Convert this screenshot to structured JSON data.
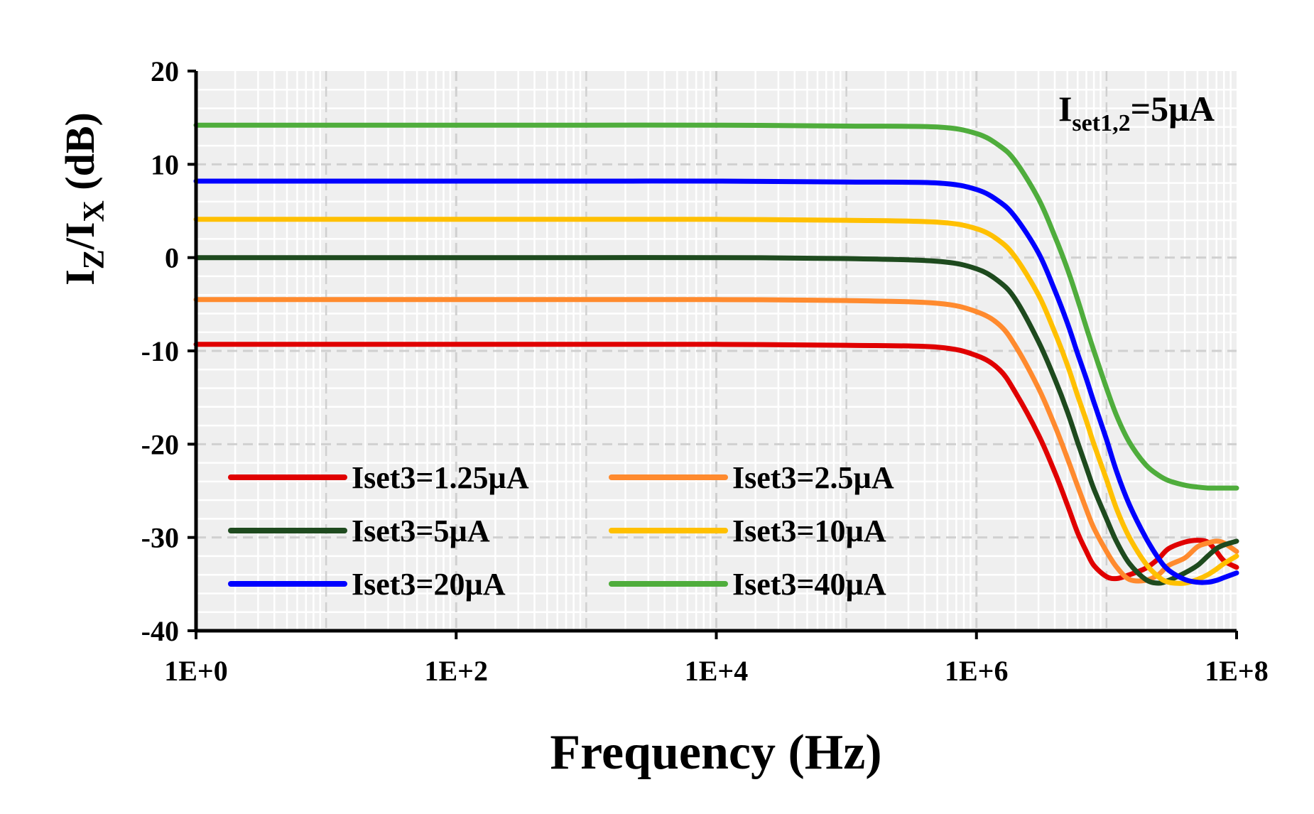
{
  "chart_data": {
    "type": "line",
    "xlabel": "Frequency (Hz)",
    "ylabel": {
      "base": "I",
      "sub1": "Z",
      "sep": "/I",
      "sub2": "X",
      "unit": " (dB)"
    },
    "x_scale": "log",
    "xlim": [
      1,
      100000000
    ],
    "ylim": [
      -40,
      20
    ],
    "x_ticks": [
      {
        "value": 1,
        "label": "1E+0"
      },
      {
        "value": 100,
        "label": "1E+2"
      },
      {
        "value": 10000,
        "label": "1E+4"
      },
      {
        "value": 1000000,
        "label": "1E+6"
      },
      {
        "value": 100000000,
        "label": "1E+8"
      }
    ],
    "y_ticks": [
      {
        "value": 20,
        "label": "20"
      },
      {
        "value": 10,
        "label": "10"
      },
      {
        "value": 0,
        "label": "0"
      },
      {
        "value": -10,
        "label": "-10"
      },
      {
        "value": -20,
        "label": "-20"
      },
      {
        "value": -30,
        "label": "-30"
      },
      {
        "value": -40,
        "label": "-40"
      }
    ],
    "annotation": {
      "main": "I",
      "sub": "set1,2",
      "rest": "=5µA"
    },
    "legend_position": "lower-left",
    "series": [
      {
        "name": "Iset3=1.25µA",
        "color": "#e00000",
        "x": [
          1,
          10,
          100,
          1000,
          10000,
          100000,
          500000,
          1000000,
          1500000,
          2000000,
          3000000,
          4000000,
          5000000,
          6000000,
          7000000,
          8000000,
          10000000,
          12000000,
          15000000,
          20000000,
          25000000,
          30000000,
          40000000,
          50000000,
          60000000,
          70000000,
          80000000,
          100000000
        ],
        "y": [
          -9.3,
          -9.3,
          -9.3,
          -9.3,
          -9.3,
          -9.4,
          -9.6,
          -10.5,
          -12.0,
          -14.5,
          -19.0,
          -23.0,
          -26.5,
          -29.5,
          -31.5,
          -33.0,
          -34.2,
          -34.4,
          -34.0,
          -33.3,
          -32.3,
          -31.2,
          -30.5,
          -30.3,
          -30.5,
          -31.5,
          -32.5,
          -33.2
        ]
      },
      {
        "name": "Iset3=2.5µA",
        "color": "#ff8a2e",
        "x": [
          1,
          10,
          100,
          1000,
          10000,
          100000,
          500000,
          1000000,
          1500000,
          2000000,
          3000000,
          4000000,
          5000000,
          6000000,
          7000000,
          8000000,
          10000000,
          12000000,
          15000000,
          20000000,
          25000000,
          30000000,
          40000000,
          50000000,
          60000000,
          70000000,
          80000000,
          100000000
        ],
        "y": [
          -4.5,
          -4.5,
          -4.5,
          -4.5,
          -4.5,
          -4.6,
          -4.9,
          -5.8,
          -7.2,
          -9.5,
          -14.0,
          -18.0,
          -21.5,
          -24.5,
          -27.0,
          -29.0,
          -31.5,
          -33.2,
          -34.5,
          -34.6,
          -34.0,
          -33.0,
          -32.2,
          -31.0,
          -30.6,
          -30.4,
          -30.6,
          -31.5
        ]
      },
      {
        "name": "Iset3=5µA",
        "color": "#1e4a1e",
        "x": [
          1,
          10,
          100,
          1000,
          10000,
          100000,
          500000,
          1000000,
          1500000,
          2000000,
          3000000,
          4000000,
          5000000,
          6000000,
          7000000,
          8000000,
          10000000,
          12000000,
          15000000,
          20000000,
          25000000,
          30000000,
          40000000,
          50000000,
          60000000,
          70000000,
          80000000,
          100000000
        ],
        "y": [
          0,
          0,
          0,
          0,
          0,
          -0.1,
          -0.4,
          -1.2,
          -2.6,
          -4.5,
          -9.0,
          -13.0,
          -16.5,
          -19.8,
          -22.5,
          -24.8,
          -28.0,
          -30.5,
          -32.8,
          -34.5,
          -34.9,
          -34.6,
          -33.8,
          -33.0,
          -32.0,
          -31.2,
          -30.8,
          -30.4
        ]
      },
      {
        "name": "Iset3=10µA",
        "color": "#ffc000",
        "x": [
          1,
          10,
          100,
          1000,
          10000,
          100000,
          500000,
          1000000,
          1500000,
          2000000,
          3000000,
          4000000,
          5000000,
          6000000,
          7000000,
          8000000,
          10000000,
          12000000,
          15000000,
          20000000,
          25000000,
          30000000,
          40000000,
          50000000,
          60000000,
          70000000,
          80000000,
          100000000
        ],
        "y": [
          4.1,
          4.1,
          4.1,
          4.1,
          4.1,
          4.0,
          3.8,
          3.1,
          1.8,
          0.0,
          -4.0,
          -8.0,
          -11.5,
          -14.8,
          -17.5,
          -20.0,
          -23.8,
          -27.0,
          -30.0,
          -32.8,
          -34.2,
          -34.8,
          -34.9,
          -34.5,
          -34.0,
          -33.4,
          -32.8,
          -32.0
        ]
      },
      {
        "name": "Iset3=20µA",
        "color": "#0000ff",
        "x": [
          1,
          10,
          100,
          1000,
          10000,
          100000,
          500000,
          1000000,
          1500000,
          2000000,
          3000000,
          4000000,
          5000000,
          6000000,
          7000000,
          8000000,
          10000000,
          12000000,
          15000000,
          20000000,
          25000000,
          30000000,
          40000000,
          50000000,
          60000000,
          70000000,
          80000000,
          100000000
        ],
        "y": [
          8.2,
          8.2,
          8.2,
          8.2,
          8.2,
          8.1,
          8.0,
          7.3,
          6.0,
          4.3,
          0.5,
          -3.5,
          -7.0,
          -10.3,
          -13.0,
          -15.5,
          -19.5,
          -23.0,
          -26.5,
          -30.0,
          -32.2,
          -33.5,
          -34.5,
          -34.8,
          -34.8,
          -34.6,
          -34.3,
          -33.8
        ]
      },
      {
        "name": "Iset3=40µA",
        "color": "#4fad3c",
        "x": [
          1,
          10,
          100,
          1000,
          10000,
          100000,
          500000,
          1000000,
          1500000,
          2000000,
          3000000,
          4000000,
          5000000,
          6000000,
          7000000,
          8000000,
          10000000,
          12000000,
          15000000,
          20000000,
          25000000,
          30000000,
          40000000,
          50000000,
          60000000,
          70000000,
          80000000,
          100000000
        ],
        "y": [
          14.2,
          14.2,
          14.2,
          14.2,
          14.2,
          14.1,
          14.0,
          13.3,
          12.0,
          10.3,
          6.3,
          2.3,
          -1.2,
          -4.5,
          -7.5,
          -10.0,
          -14.0,
          -17.0,
          -19.8,
          -22.2,
          -23.3,
          -23.9,
          -24.4,
          -24.6,
          -24.7,
          -24.7,
          -24.7,
          -24.7
        ]
      }
    ]
  }
}
